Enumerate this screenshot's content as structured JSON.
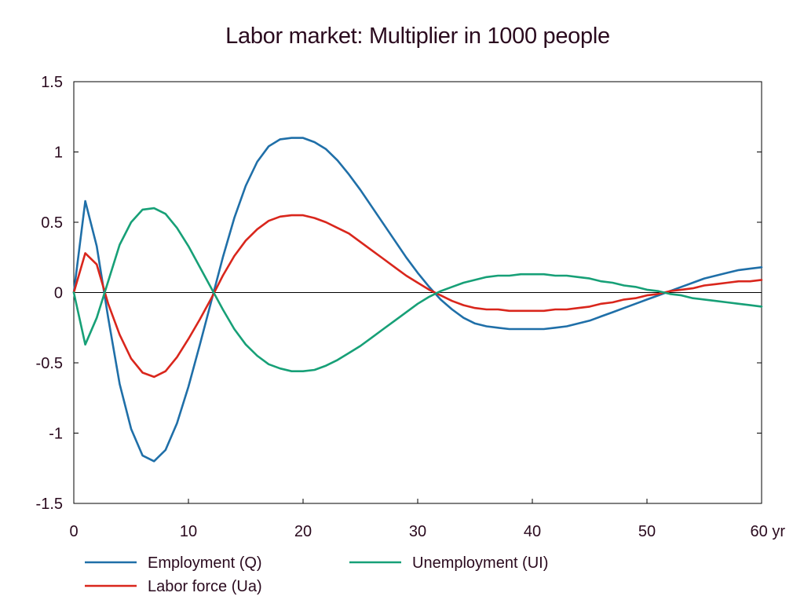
{
  "chart_data": {
    "type": "line",
    "title": "Labor market: Multiplier in 1000 people",
    "xlabel": "",
    "ylabel": "",
    "x_unit": "yr",
    "xlim": [
      0,
      60
    ],
    "ylim": [
      -1.5,
      1.5
    ],
    "x_ticks": [
      0,
      10,
      20,
      30,
      40,
      50,
      60
    ],
    "x_tick_labels": [
      "0",
      "10",
      "20",
      "30",
      "40",
      "50",
      "60 yr"
    ],
    "y_ticks": [
      1.5,
      1,
      0.5,
      0,
      -0.5,
      -1,
      -1.5
    ],
    "y_tick_labels": [
      "1.5",
      "1",
      "0.5",
      "0",
      "-0.5",
      "-1",
      "-1.5"
    ],
    "grid": false,
    "zero_line": true,
    "legend_position": "bottom",
    "x": [
      0,
      1,
      2,
      3,
      4,
      5,
      6,
      7,
      8,
      9,
      10,
      11,
      12,
      13,
      14,
      15,
      16,
      17,
      18,
      19,
      20,
      21,
      22,
      23,
      24,
      25,
      26,
      27,
      28,
      29,
      30,
      31,
      32,
      33,
      34,
      35,
      36,
      37,
      38,
      39,
      40,
      41,
      42,
      43,
      44,
      45,
      46,
      47,
      48,
      49,
      50,
      51,
      52,
      53,
      54,
      55,
      56,
      57,
      58,
      59,
      60
    ],
    "series": [
      {
        "name": "Employment (Q)",
        "color": "#1f6fa8",
        "values": [
          0,
          0.65,
          0.33,
          -0.18,
          -0.65,
          -0.97,
          -1.16,
          -1.2,
          -1.12,
          -0.93,
          -0.67,
          -0.37,
          -0.06,
          0.25,
          0.53,
          0.76,
          0.93,
          1.04,
          1.09,
          1.1,
          1.1,
          1.07,
          1.02,
          0.94,
          0.84,
          0.73,
          0.61,
          0.49,
          0.37,
          0.25,
          0.14,
          0.04,
          -0.05,
          -0.12,
          -0.18,
          -0.22,
          -0.24,
          -0.25,
          -0.26,
          -0.26,
          -0.26,
          -0.26,
          -0.25,
          -0.24,
          -0.22,
          -0.2,
          -0.17,
          -0.14,
          -0.11,
          -0.08,
          -0.05,
          -0.02,
          0.01,
          0.04,
          0.07,
          0.1,
          0.12,
          0.14,
          0.16,
          0.17,
          0.18
        ]
      },
      {
        "name": "Labor force (Ua)",
        "color": "#d9261c",
        "values": [
          0,
          0.28,
          0.2,
          -0.08,
          -0.3,
          -0.47,
          -0.57,
          -0.6,
          -0.56,
          -0.46,
          -0.33,
          -0.19,
          -0.04,
          0.12,
          0.26,
          0.37,
          0.45,
          0.51,
          0.54,
          0.55,
          0.55,
          0.53,
          0.5,
          0.46,
          0.42,
          0.36,
          0.3,
          0.24,
          0.18,
          0.12,
          0.07,
          0.02,
          -0.02,
          -0.06,
          -0.09,
          -0.11,
          -0.12,
          -0.12,
          -0.13,
          -0.13,
          -0.13,
          -0.13,
          -0.12,
          -0.12,
          -0.11,
          -0.1,
          -0.08,
          -0.07,
          -0.05,
          -0.04,
          -0.02,
          -0.01,
          0.01,
          0.02,
          0.03,
          0.05,
          0.06,
          0.07,
          0.08,
          0.08,
          0.09
        ]
      },
      {
        "name": "Unemployment (UI)",
        "color": "#17a077",
        "values": [
          0,
          -0.37,
          -0.18,
          0.08,
          0.34,
          0.5,
          0.59,
          0.6,
          0.56,
          0.46,
          0.33,
          0.18,
          0.03,
          -0.12,
          -0.26,
          -0.37,
          -0.45,
          -0.51,
          -0.54,
          -0.56,
          -0.56,
          -0.55,
          -0.52,
          -0.48,
          -0.43,
          -0.38,
          -0.32,
          -0.26,
          -0.2,
          -0.14,
          -0.08,
          -0.03,
          0.01,
          0.04,
          0.07,
          0.09,
          0.11,
          0.12,
          0.12,
          0.13,
          0.13,
          0.13,
          0.12,
          0.12,
          0.11,
          0.1,
          0.08,
          0.07,
          0.05,
          0.04,
          0.02,
          0.01,
          -0.01,
          -0.02,
          -0.04,
          -0.05,
          -0.06,
          -0.07,
          -0.08,
          -0.09,
          -0.1
        ]
      }
    ]
  }
}
